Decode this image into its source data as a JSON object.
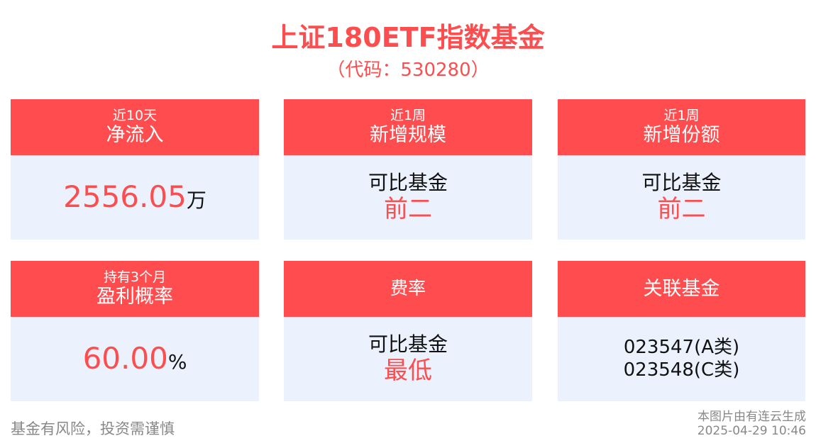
{
  "header": {
    "title": "上证180ETF指数基金",
    "code": "（代码：530280）"
  },
  "colors": {
    "accent": "#ff4d4f",
    "card_body": "#ebf2fd"
  },
  "cards": [
    {
      "sub": "近10天",
      "label": "净流入",
      "value": "2556.05",
      "unit": "万"
    },
    {
      "sub": "近1周",
      "label": "新增规模",
      "line1": "可比基金",
      "line2": "前二"
    },
    {
      "sub": "近1周",
      "label": "新增份额",
      "line1": "可比基金",
      "line2": "前二"
    },
    {
      "sub": "持有3个月",
      "label": "盈利概率",
      "value": "60.00",
      "unit": "%"
    },
    {
      "label": "费率",
      "line1": "可比基金",
      "line2": "最低"
    },
    {
      "label": "关联基金",
      "line1": "023547(A类)",
      "line2": "023548(C类)"
    }
  ],
  "footer": {
    "disclaimer": "基金有风险，投资需谨慎",
    "generated_by": "本图片由有连云生成",
    "timestamp": "2025-04-29 10:46"
  }
}
